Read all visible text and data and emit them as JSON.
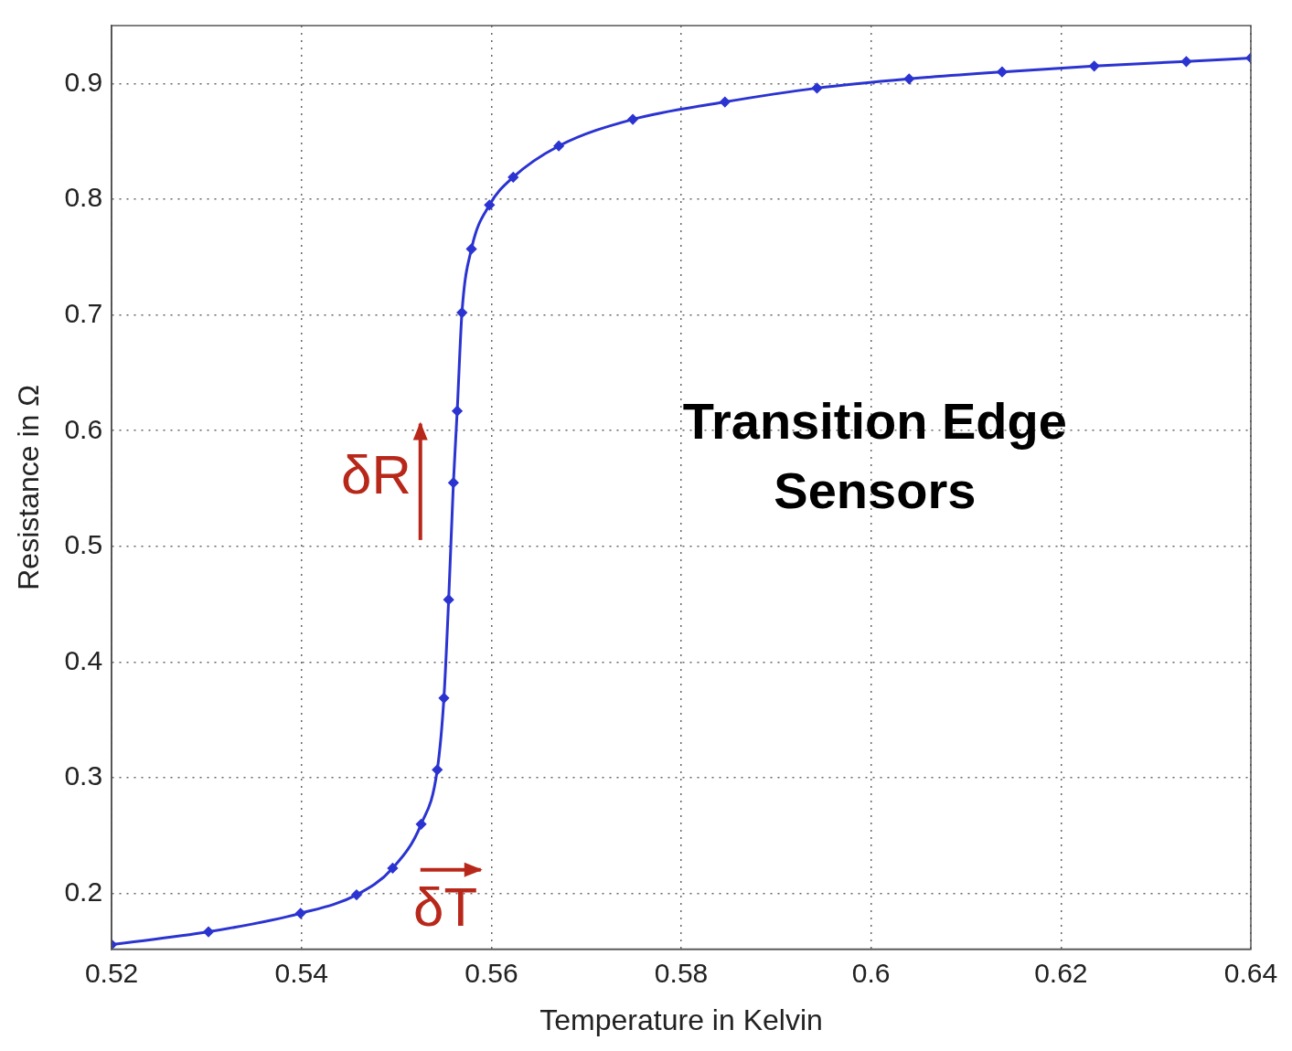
{
  "chart_data": {
    "type": "line",
    "xlabel": "Temperature in Kelvin",
    "ylabel": "Resistance in Ω",
    "x": [
      0.52,
      0.5302,
      0.5399,
      0.5458,
      0.5496,
      0.5526,
      0.5543,
      0.555,
      0.5555,
      0.556,
      0.5564,
      0.5569,
      0.5579,
      0.5598,
      0.5623,
      0.5671,
      0.5749,
      0.5846,
      0.5943,
      0.604,
      0.6138,
      0.6235,
      0.6332,
      0.64
    ],
    "series": [
      {
        "color": "#2b33d1",
        "values": [
          0.156,
          0.167,
          0.183,
          0.199,
          0.222,
          0.26,
          0.307,
          0.369,
          0.454,
          0.555,
          0.617,
          0.702,
          0.757,
          0.795,
          0.819,
          0.846,
          0.869,
          0.884,
          0.896,
          0.904,
          0.91,
          0.915,
          0.919,
          0.922
        ]
      }
    ],
    "xlim": [
      0.52,
      0.64
    ],
    "xticks": [
      0.52,
      0.54,
      0.56,
      0.58,
      0.6,
      0.62,
      0.64
    ],
    "ylim": [
      0.152,
      0.95
    ],
    "yticks": [
      0.2,
      0.3,
      0.4,
      0.5,
      0.6,
      0.7,
      0.8,
      0.9
    ],
    "grid": true,
    "marker": "diamond",
    "legend": false,
    "annotations": [
      "Transition Edge Sensors",
      "δR",
      "δT"
    ]
  }
}
